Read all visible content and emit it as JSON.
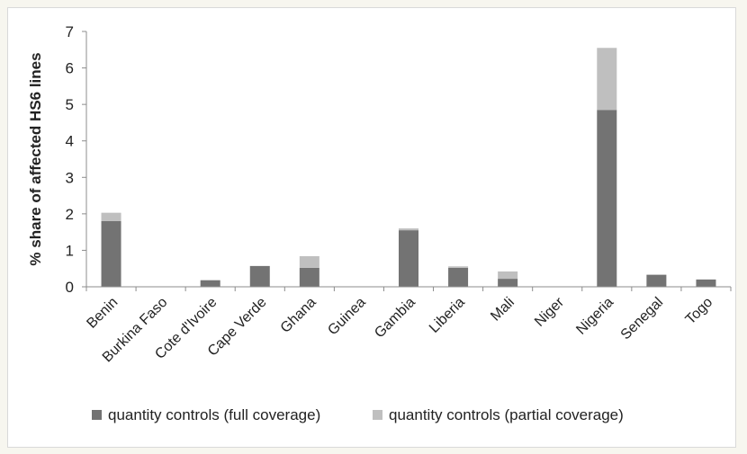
{
  "chart_data": {
    "type": "bar",
    "stacked": true,
    "title": "",
    "xlabel": "",
    "ylabel": "% share of affected HS6 lines",
    "ylim": [
      0,
      7
    ],
    "yticks": [
      0,
      1,
      2,
      3,
      4,
      5,
      6,
      7
    ],
    "grid": false,
    "legend_position": "bottom",
    "categories": [
      "Benin",
      "Burkina Faso",
      "Cote d'Ivoire",
      "Cape Verde",
      "Ghana",
      "Guinea",
      "Gambia",
      "Liberia",
      "Mali",
      "Niger",
      "Nigeria",
      "Senegal",
      "Togo"
    ],
    "series": [
      {
        "name": "quantity controls (full coverage)",
        "color": "#737373",
        "values": [
          1.8,
          0,
          0.18,
          0.57,
          0.52,
          0,
          1.55,
          0.52,
          0.22,
          0,
          4.85,
          0.33,
          0.2
        ]
      },
      {
        "name": "quantity controls (partial coverage)",
        "color": "#bfbfbf",
        "values": [
          0.23,
          0,
          0,
          0,
          0.32,
          0,
          0.05,
          0.04,
          0.2,
          0,
          1.7,
          0,
          0
        ]
      }
    ]
  }
}
